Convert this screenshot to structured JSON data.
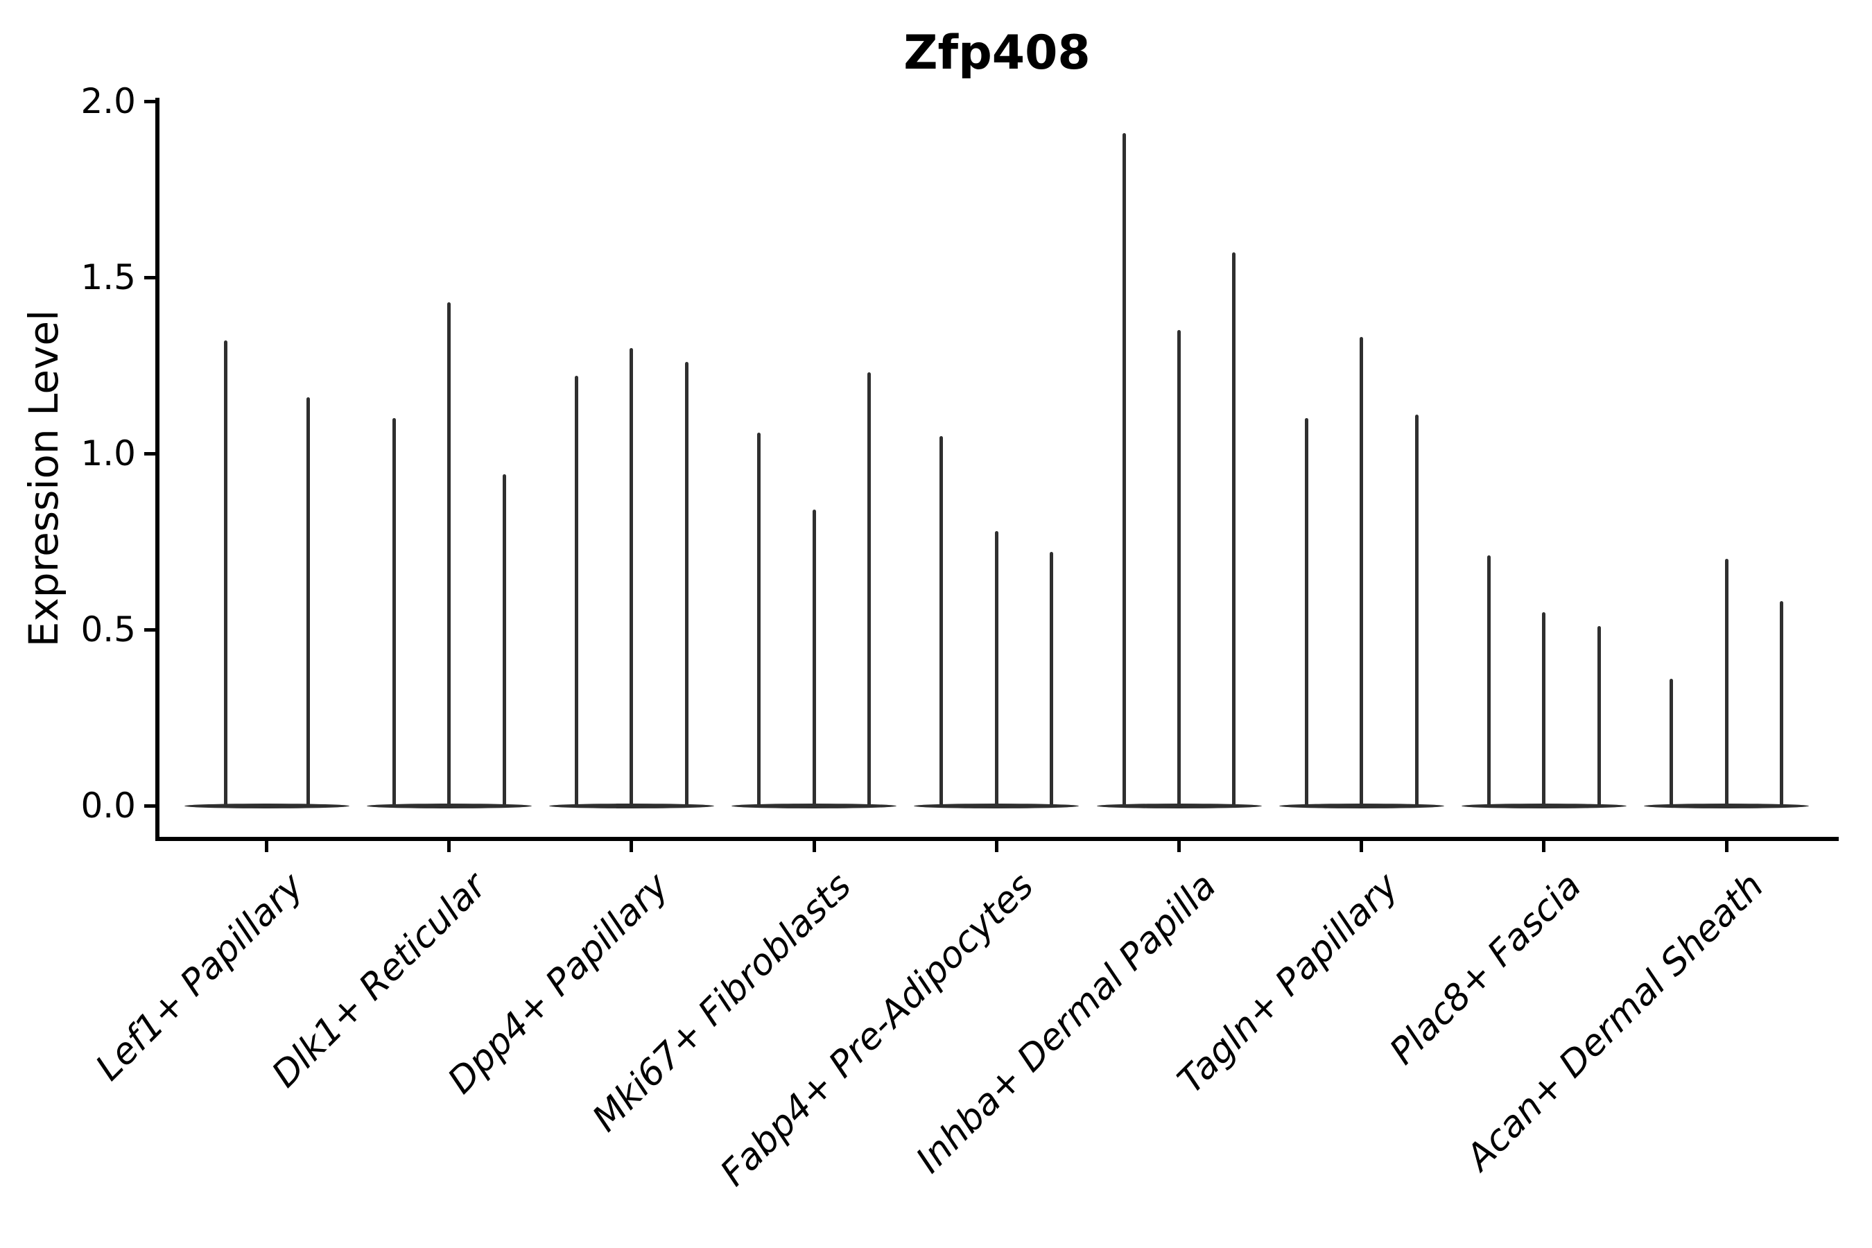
{
  "figure": {
    "title": "Zfp408",
    "y_axis_label": "Expression Level"
  },
  "colors": {
    "violin": "#2f2f2f",
    "axis": "#000000",
    "text": "#000000",
    "background": "#ffffff"
  },
  "chart_data": {
    "type": "violin",
    "title": "Zfp408",
    "xlabel": "",
    "ylabel": "Expression Level",
    "ylim": [
      -0.1,
      2.0
    ],
    "yticks": [
      0.0,
      0.5,
      1.0,
      1.5,
      2.0
    ],
    "ytick_labels": [
      "0.0",
      "0.5",
      "1.0",
      "1.5",
      "2.0"
    ],
    "grid": false,
    "legend_position": "none",
    "xtick_rotation_deg": 45,
    "shape_note": "Each violin is a near-zero expression distribution: wide flat base at 0 with a thin vertical spike reaching the max value",
    "categories": [
      "Lef1+ Papillary",
      "Dlk1+ Reticular",
      "Dpp4+ Papillary",
      "Mki67+ Fibroblasts",
      "Fabp4+ Pre-Adipocytes",
      "Inhba+ Dermal Papilla",
      "Tagln+ Papillary",
      "Plac8+ Fascia",
      "Acan+ Dermal Sheath"
    ],
    "series": [
      {
        "category": "Lef1+ Papillary",
        "violin_peak_values": [
          1.32,
          1.16
        ]
      },
      {
        "category": "Dlk1+ Reticular",
        "violin_peak_values": [
          1.1,
          1.43,
          0.94
        ]
      },
      {
        "category": "Dpp4+ Papillary",
        "violin_peak_values": [
          1.22,
          1.3,
          1.26
        ]
      },
      {
        "category": "Mki67+ Fibroblasts",
        "violin_peak_values": [
          1.06,
          0.84,
          1.23
        ]
      },
      {
        "category": "Fabp4+ Pre-Adipocytes",
        "violin_peak_values": [
          1.05,
          0.78,
          0.72
        ]
      },
      {
        "category": "Inhba+ Dermal Papilla",
        "violin_peak_values": [
          1.91,
          1.35,
          1.57
        ]
      },
      {
        "category": "Tagln+ Papillary",
        "violin_peak_values": [
          1.1,
          1.33,
          1.11
        ]
      },
      {
        "category": "Plac8+ Fascia",
        "violin_peak_values": [
          0.71,
          0.55,
          0.51
        ]
      },
      {
        "category": "Acan+ Dermal Sheath",
        "violin_peak_values": [
          0.36,
          0.7,
          0.58
        ]
      }
    ]
  }
}
